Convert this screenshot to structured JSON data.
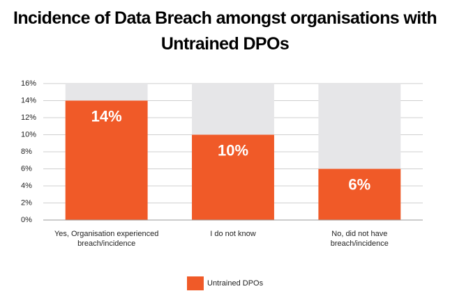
{
  "chart_data": {
    "type": "bar",
    "title": "Incidence of Data Breach amongst organisations with Untrained DPOs",
    "categories": [
      "Yes, Organisation experienced breach/incidence",
      "I do not know",
      "No, did not have breach/incidence"
    ],
    "series": [
      {
        "name": "Untrained DPOs",
        "color": "#f05a28",
        "values": [
          14,
          10,
          6
        ],
        "value_labels": [
          "14%",
          "10%",
          "6%"
        ]
      }
    ],
    "ylim": [
      0,
      16
    ],
    "yticks": [
      {
        "value": 0,
        "label": "0%"
      },
      {
        "value": 2,
        "label": "2%"
      },
      {
        "value": 4,
        "label": "4%"
      },
      {
        "value": 6,
        "label": "6%"
      },
      {
        "value": 8,
        "label": "8%"
      },
      {
        "value": 10,
        "label": "10%"
      },
      {
        "value": 12,
        "label": "12%"
      },
      {
        "value": 14,
        "label": "14%"
      },
      {
        "value": 16,
        "label": "16%"
      }
    ],
    "grid": true,
    "track_color": "#e6e6e8",
    "legend": "bottom"
  }
}
